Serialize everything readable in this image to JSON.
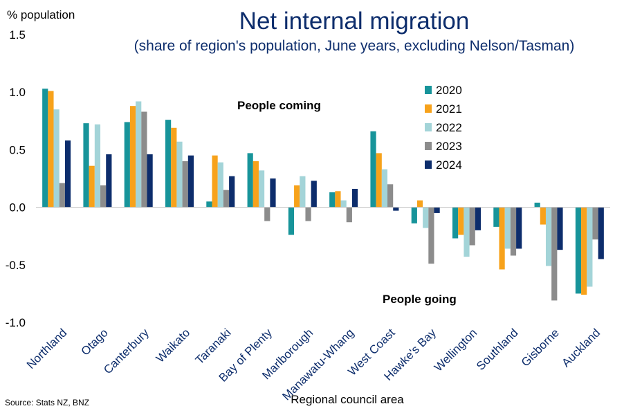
{
  "chart_data": {
    "type": "bar",
    "title": "Net internal migration",
    "subtitle": "(share of region's population, June years, excluding Nelson/Tasman)",
    "ylabel": "% population",
    "xlabel": "Regional council area",
    "source": "Source: Stats NZ, BNZ",
    "ylim": [
      -1.0,
      1.5
    ],
    "yticks": [
      "1.5",
      "1.0",
      "0.5",
      "0.0",
      "-0.5",
      "-1.0"
    ],
    "ytick_values": [
      1.5,
      1.0,
      0.5,
      0.0,
      -0.5,
      -1.0
    ],
    "grid": false,
    "legend_position": "top-right",
    "annotations": {
      "coming": "People coming",
      "going": "People going"
    },
    "categories": [
      "Northland",
      "Otago",
      "Canterbury",
      "Waikato",
      "Taranaki",
      "Bay of Plenty",
      "Marlborough",
      "Manawatu-Whang",
      "West Coast",
      "Hawke's Bay",
      "Wellington",
      "Southland",
      "Gisborne",
      "Auckland"
    ],
    "series": [
      {
        "name": "2020",
        "color": "#17949a",
        "values": [
          1.03,
          0.73,
          0.74,
          0.76,
          0.05,
          0.47,
          -0.24,
          0.13,
          0.66,
          -0.14,
          -0.27,
          -0.17,
          0.04,
          -0.75
        ]
      },
      {
        "name": "2021",
        "color": "#f7a21b",
        "values": [
          1.01,
          0.36,
          0.88,
          0.69,
          0.45,
          0.4,
          0.19,
          0.14,
          0.47,
          0.06,
          -0.24,
          -0.54,
          -0.15,
          -0.76
        ]
      },
      {
        "name": "2022",
        "color": "#a3d4d8",
        "values": [
          0.85,
          0.72,
          0.92,
          0.57,
          0.39,
          0.32,
          0.27,
          0.06,
          0.33,
          -0.18,
          -0.43,
          -0.36,
          -0.51,
          -0.69
        ]
      },
      {
        "name": "2023",
        "color": "#8c8c8c",
        "values": [
          0.21,
          0.19,
          0.83,
          0.4,
          0.15,
          -0.12,
          -0.12,
          -0.13,
          0.2,
          -0.49,
          -0.33,
          -0.42,
          -0.81,
          -0.28
        ]
      },
      {
        "name": "2024",
        "color": "#0d2d6c",
        "values": [
          0.58,
          0.46,
          0.46,
          0.45,
          0.27,
          0.25,
          0.23,
          0.16,
          -0.03,
          -0.05,
          -0.2,
          -0.36,
          -0.37,
          -0.45
        ]
      }
    ]
  }
}
